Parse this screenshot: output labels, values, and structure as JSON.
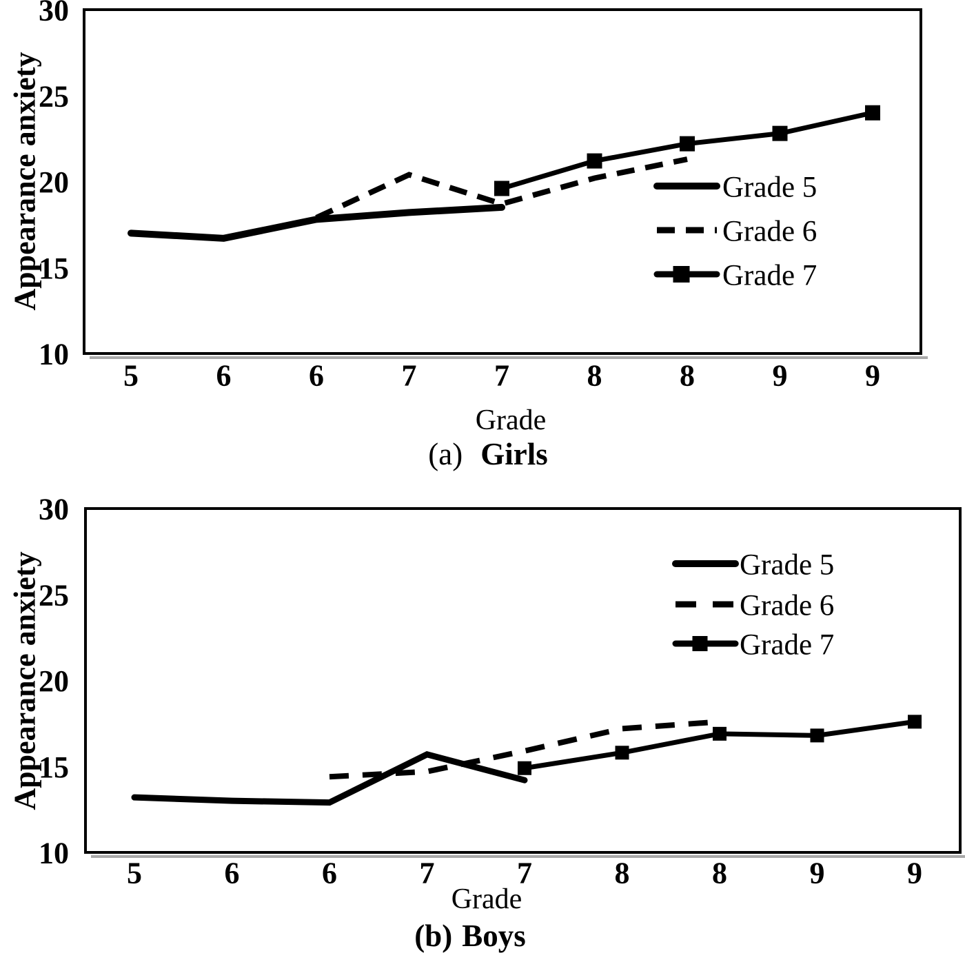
{
  "page": {
    "background": "#ffffff"
  },
  "colors": {
    "foreground": "#000000",
    "background": "#ffffff",
    "axis_shadow": "#a9a9a9"
  },
  "chart_data": [
    {
      "id": "girls",
      "type": "line",
      "caption_prefix": "(a)",
      "caption_label": "Girls",
      "xlabel": "Grade",
      "ylabel": "Appearance anxiety",
      "ylim": [
        10,
        30
      ],
      "yticks": [
        10,
        15,
        20,
        25,
        30
      ],
      "x_tick_labels": [
        "5",
        "6",
        "6",
        "7",
        "7",
        "8",
        "8",
        "9",
        "9"
      ],
      "grid": false,
      "legend_position": "middle-right",
      "legend_entries": [
        "Grade 5",
        "Grade 6",
        "Grade 7"
      ],
      "series": [
        {
          "name": "Grade 5",
          "line_style": "solid",
          "marker": "none",
          "start_index": 0,
          "values": [
            17.0,
            16.7,
            17.8,
            18.2,
            18.5
          ]
        },
        {
          "name": "Grade 6",
          "line_style": "dashed",
          "marker": "none",
          "start_index": 2,
          "values": [
            17.9,
            20.4,
            18.7,
            20.2,
            21.3
          ]
        },
        {
          "name": "Grade 7",
          "line_style": "solid",
          "marker": "square",
          "start_index": 4,
          "values": [
            19.6,
            21.2,
            22.2,
            22.8,
            24.0
          ]
        }
      ]
    },
    {
      "id": "boys",
      "type": "line",
      "caption_prefix": "(b)",
      "caption_label": "Boys",
      "xlabel": "Grade",
      "ylabel": "Appearance anxiety",
      "ylim": [
        10,
        30
      ],
      "yticks": [
        10,
        15,
        20,
        25,
        30
      ],
      "x_tick_labels": [
        "5",
        "6",
        "6",
        "7",
        "7",
        "8",
        "8",
        "9",
        "9"
      ],
      "grid": false,
      "legend_position": "upper-right",
      "legend_entries": [
        "Grade 5",
        "Grade 6",
        "Grade 7"
      ],
      "series": [
        {
          "name": "Grade 5",
          "line_style": "solid",
          "marker": "none",
          "start_index": 0,
          "values": [
            13.2,
            13.0,
            12.9,
            15.7,
            14.2
          ]
        },
        {
          "name": "Grade 6",
          "line_style": "dashed",
          "marker": "none",
          "start_index": 2,
          "values": [
            14.4,
            14.7,
            15.9,
            17.2,
            17.6
          ]
        },
        {
          "name": "Grade 7",
          "line_style": "solid",
          "marker": "square",
          "start_index": 4,
          "values": [
            14.9,
            15.8,
            16.9,
            16.8,
            17.6
          ]
        }
      ]
    }
  ]
}
